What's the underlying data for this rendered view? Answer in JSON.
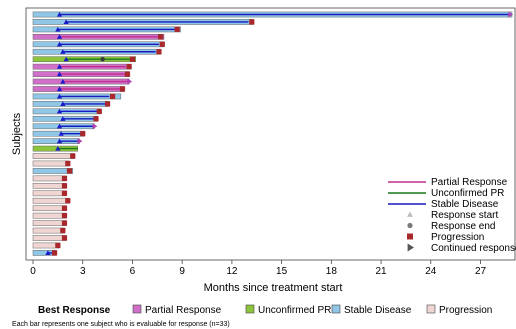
{
  "chart_data": {
    "type": "bar",
    "orientation": "horizontal",
    "xlabel": "Months since treatment start",
    "ylabel": "Subjects",
    "xlim": [
      0,
      28.9
    ],
    "xticks": [
      0,
      3,
      6,
      9,
      12,
      15,
      18,
      21,
      24,
      27
    ],
    "n_subjects": 33,
    "colors": {
      "Partial Response": "#d070c8",
      "Unconfirmed PR": "#8cc43c",
      "Stable Disease": "#90c6e6",
      "Progression": "#efd6d2",
      "pr_line": "#c0308c",
      "upr_line": "#1a7a1a",
      "sd_line": "#1a1ac0",
      "marker_start": "#1a1acc",
      "marker_end": "#3c3c3c",
      "marker_prog": "#a8282c",
      "marker_cont": "#b040b0"
    },
    "subjects": [
      {
        "best": "Stable Disease",
        "duration": 28.9,
        "response_start": 1.6,
        "response_end": null,
        "response_line_end": 28.9,
        "progression": null,
        "continued": true
      },
      {
        "best": "Stable Disease",
        "duration": 13.3,
        "response_start": 2.0,
        "response_end": null,
        "response_line_end": 13.0,
        "progression": 13.2,
        "continued": false
      },
      {
        "best": "Stable Disease",
        "duration": 8.9,
        "response_start": 1.5,
        "response_end": null,
        "response_line_end": 8.6,
        "progression": 8.7,
        "continued": false
      },
      {
        "best": "Partial Response",
        "duration": 7.9,
        "response_start": 1.6,
        "response_end": null,
        "response_line_end": 7.6,
        "progression": 7.7,
        "continued": false
      },
      {
        "best": "Stable Disease",
        "duration": 7.9,
        "response_start": 1.6,
        "response_end": null,
        "response_line_end": 7.6,
        "progression": 7.8,
        "continued": false
      },
      {
        "best": "Stable Disease",
        "duration": 7.7,
        "response_start": 1.8,
        "response_end": null,
        "response_line_end": 7.4,
        "progression": 7.6,
        "continued": false
      },
      {
        "best": "Unconfirmed PR",
        "duration": 6.2,
        "response_start": 2.0,
        "response_end": 4.2,
        "response_line_end": 6.0,
        "progression": 6.0,
        "continued": false
      },
      {
        "best": "Partial Response",
        "duration": 5.9,
        "response_start": 1.6,
        "response_end": null,
        "response_line_end": 5.6,
        "progression": 5.8,
        "continued": false
      },
      {
        "best": "Partial Response",
        "duration": 5.8,
        "response_start": 1.6,
        "response_end": null,
        "response_line_end": 5.7,
        "progression": 5.7,
        "continued": false
      },
      {
        "best": "Partial Response",
        "duration": 5.8,
        "response_start": 1.8,
        "response_end": null,
        "response_line_end": 5.8,
        "progression": null,
        "continued": true
      },
      {
        "best": "Partial Response",
        "duration": 5.5,
        "response_start": 1.6,
        "response_end": null,
        "response_line_end": 5.3,
        "progression": 5.4,
        "continued": false
      },
      {
        "best": "Stable Disease",
        "duration": 5.3,
        "response_start": 1.6,
        "response_end": null,
        "response_line_end": 4.6,
        "progression": 4.8,
        "continued": false
      },
      {
        "best": "Stable Disease",
        "duration": 4.6,
        "response_start": 1.8,
        "response_end": null,
        "response_line_end": 4.4,
        "progression": 4.5,
        "continued": false
      },
      {
        "best": "Stable Disease",
        "duration": 4.1,
        "response_start": 1.6,
        "response_end": null,
        "response_line_end": 3.9,
        "progression": 4.0,
        "continued": false
      },
      {
        "best": "Stable Disease",
        "duration": 3.9,
        "response_start": 1.8,
        "response_end": null,
        "response_line_end": 3.7,
        "progression": 3.8,
        "continued": false
      },
      {
        "best": "Stable Disease",
        "duration": 3.7,
        "response_start": 1.6,
        "response_end": null,
        "response_line_end": 3.7,
        "progression": null,
        "continued": true
      },
      {
        "best": "Stable Disease",
        "duration": 3.1,
        "response_start": 1.7,
        "response_end": null,
        "response_line_end": 2.9,
        "progression": 3.0,
        "continued": false
      },
      {
        "best": "Stable Disease",
        "duration": 2.8,
        "response_start": 1.6,
        "response_end": null,
        "response_line_end": 2.8,
        "progression": null,
        "continued": true
      },
      {
        "best": "Unconfirmed PR",
        "duration": 2.7,
        "response_start": 1.5,
        "response_end": null,
        "response_line_end": 2.7,
        "progression": null,
        "continued": false
      },
      {
        "best": "Progression",
        "duration": 2.5,
        "response_start": null,
        "response_end": null,
        "response_line_end": null,
        "progression": 2.4,
        "continued": false
      },
      {
        "best": "Progression",
        "duration": 2.2,
        "response_start": null,
        "response_end": null,
        "response_line_end": null,
        "progression": 2.1,
        "continued": false
      },
      {
        "best": "Stable Disease",
        "duration": 2.4,
        "response_start": null,
        "response_end": null,
        "response_line_end": null,
        "progression": 2.2,
        "continued": false
      },
      {
        "best": "Progression",
        "duration": 2.0,
        "response_start": null,
        "response_end": null,
        "response_line_end": null,
        "progression": 1.9,
        "continued": false
      },
      {
        "best": "Progression",
        "duration": 2.0,
        "response_start": null,
        "response_end": null,
        "response_line_end": null,
        "progression": 1.9,
        "continued": false
      },
      {
        "best": "Progression",
        "duration": 2.0,
        "response_start": null,
        "response_end": null,
        "response_line_end": null,
        "progression": 1.9,
        "continued": false
      },
      {
        "best": "Progression",
        "duration": 2.2,
        "response_start": null,
        "response_end": null,
        "response_line_end": null,
        "progression": 2.1,
        "continued": false
      },
      {
        "best": "Progression",
        "duration": 2.0,
        "response_start": null,
        "response_end": null,
        "response_line_end": null,
        "progression": 1.9,
        "continued": false
      },
      {
        "best": "Progression",
        "duration": 2.0,
        "response_start": null,
        "response_end": null,
        "response_line_end": null,
        "progression": 1.9,
        "continued": false
      },
      {
        "best": "Progression",
        "duration": 2.0,
        "response_start": null,
        "response_end": null,
        "response_line_end": null,
        "progression": 1.9,
        "continued": false
      },
      {
        "best": "Progression",
        "duration": 1.9,
        "response_start": null,
        "response_end": null,
        "response_line_end": null,
        "progression": 1.8,
        "continued": false
      },
      {
        "best": "Progression",
        "duration": 2.0,
        "response_start": null,
        "response_end": null,
        "response_line_end": null,
        "progression": 1.9,
        "continued": false
      },
      {
        "best": "Progression",
        "duration": 1.6,
        "response_start": null,
        "response_end": null,
        "response_line_end": null,
        "progression": 1.5,
        "continued": false
      },
      {
        "best": "Stable Disease",
        "duration": 1.4,
        "response_start": 0.9,
        "response_end": null,
        "response_line_end": 1.3,
        "progression": 1.3,
        "continued": false
      }
    ],
    "line_legend": [
      {
        "label": "Partial Response",
        "key": "pr_line"
      },
      {
        "label": "Unconfirmed PR",
        "key": "upr_line"
      },
      {
        "label": "Stable Disease",
        "key": "sd_line"
      }
    ],
    "marker_legend": [
      {
        "label": "Response start",
        "marker": "triangle"
      },
      {
        "label": "Response end",
        "marker": "circle"
      },
      {
        "label": "Progression",
        "marker": "square"
      },
      {
        "label": "Continued response",
        "marker": "arrow"
      }
    ],
    "bottom_legend": {
      "title": "Best Response",
      "items": [
        "Partial Response",
        "Unconfirmed PR",
        "Stable Disease",
        "Progression"
      ]
    },
    "footnote": "Each bar represents one subject who is evaluable for response (n=33)"
  }
}
